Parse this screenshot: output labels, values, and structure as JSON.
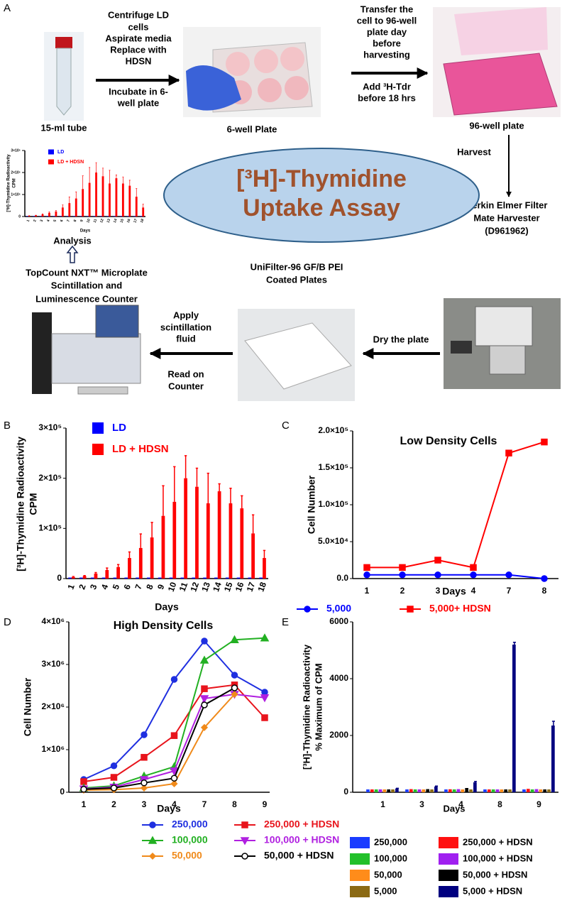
{
  "diagram": {
    "label": "A",
    "tube": "15-ml tube",
    "step1": [
      "Centrifuge LD",
      "cells",
      "Aspirate media",
      "Replace with",
      "HDSN"
    ],
    "step1b": [
      "Incubate in 6-",
      "well plate"
    ],
    "plate6": "6-well Plate",
    "step2": [
      "Transfer the",
      "cell to 96-well",
      "plate day",
      "before",
      "harvesting"
    ],
    "step2b": [
      "Add ³H-Tdr",
      "before 18 hrs"
    ],
    "plate96": "96-well plate",
    "harvest": "Harvest",
    "harvester": [
      "Perkin Elmer Filter",
      "Mate Harvester",
      "(D961962)"
    ],
    "title": [
      "[³H]-Thymidine",
      "Uptake Assay"
    ],
    "analysis": "Analysis",
    "counter": [
      "TopCount NXT™ Microplate",
      "Scintillation and",
      "Luminescence Counter"
    ],
    "filter": [
      "UniFilter-96 GF/B PEI",
      "Coated Plates"
    ],
    "apply": [
      "Apply",
      "scintillation",
      "fluid"
    ],
    "read": [
      "Read on",
      "Counter"
    ],
    "dry": "Dry the plate"
  },
  "chart_data": [
    {
      "type": "bar",
      "panel": "B",
      "ylabel": [
        "[³H]-Thymidine Radioactivity",
        "CPM"
      ],
      "xlabel": "Days",
      "categories": [
        "1",
        "2",
        "3",
        "4",
        "5",
        "6",
        "7",
        "8",
        "9",
        "10",
        "11",
        "12",
        "13",
        "14",
        "15",
        "16",
        "17",
        "18"
      ],
      "series": [
        {
          "name": "LD",
          "color": "#0000ff",
          "values": [
            2000,
            2000,
            2000,
            2000,
            2000,
            2000,
            2000,
            2000,
            2000,
            2000,
            2000,
            2000,
            2000,
            2000,
            2000,
            2000,
            2000,
            2000
          ]
        },
        {
          "name": "LD + HDSN",
          "color": "#ff0000",
          "values": [
            3000,
            5000,
            10000,
            17000,
            23000,
            41000,
            61000,
            82000,
            125000,
            153000,
            200000,
            183000,
            150000,
            174000,
            150000,
            140000,
            90000,
            41000
          ],
          "errors": [
            1000,
            1000,
            2000,
            4000,
            5000,
            12000,
            28000,
            30000,
            60000,
            70000,
            45000,
            37000,
            60000,
            15000,
            30000,
            25000,
            37000,
            15000
          ]
        }
      ],
      "ylim": [
        0,
        300000
      ],
      "yticks": [
        0,
        {
          "value": 100000,
          "label": "1×10⁵"
        },
        {
          "value": 200000,
          "label": "2×10⁵"
        },
        {
          "value": 300000,
          "label": "3×10⁵"
        }
      ],
      "legend": "upper left",
      "legend_text_colored": true,
      "grid": false
    },
    {
      "type": "line",
      "panel": "C",
      "title": "Low Density Cells",
      "ylabel": [
        "Cell Number"
      ],
      "xlabel": "Days",
      "categories": [
        "1",
        "2",
        "3",
        "4",
        "7",
        "8"
      ],
      "series": [
        {
          "name": "5,000",
          "color": "#0000ff",
          "marker": "circle",
          "values": [
            5000,
            5000,
            5000,
            5000,
            5000,
            0
          ]
        },
        {
          "name": "5,000+ HDSN",
          "color": "#ff0000",
          "marker": "square",
          "values": [
            15000,
            15000,
            25000,
            15000,
            170000,
            185000
          ]
        }
      ],
      "ylim": [
        0,
        200000
      ],
      "yticks": [
        {
          "value": 0,
          "label": "0.0"
        },
        {
          "value": 50000,
          "label": "5.0×10⁴"
        },
        {
          "value": 100000,
          "label": "1.0×10⁵"
        },
        {
          "value": 150000,
          "label": "1.5×10⁵"
        },
        {
          "value": 200000,
          "label": "2.0×10⁵"
        }
      ],
      "legend": "bottom",
      "legend_text_colored": true,
      "grid": false
    },
    {
      "type": "line",
      "panel": "D",
      "title": "High Density Cells",
      "ylabel": [
        "Cell Number"
      ],
      "xlabel": "Days",
      "categories": [
        "1",
        "2",
        "3",
        "4",
        "7",
        "8",
        "9"
      ],
      "series": [
        {
          "name": "250,000",
          "color": "#1f2fe0",
          "marker": "circle",
          "values": [
            300000,
            620000,
            1350000,
            2650000,
            3550000,
            2750000,
            2350000
          ]
        },
        {
          "name": "250,000 + HDSN",
          "color": "#e8141c",
          "marker": "square",
          "values": [
            250000,
            350000,
            820000,
            1330000,
            2430000,
            2520000,
            1750000
          ]
        },
        {
          "name": "100,000",
          "color": "#22b022",
          "marker": "triangle",
          "values": [
            100000,
            150000,
            380000,
            600000,
            3100000,
            3580000,
            3620000
          ]
        },
        {
          "name": "100,000 + HDSN",
          "color": "#b020e0",
          "marker": "triangle-down",
          "values": [
            80000,
            120000,
            300000,
            500000,
            2200000,
            2300000,
            2220000
          ]
        },
        {
          "name": "50,000",
          "color": "#f08a1a",
          "marker": "diamond",
          "values": [
            50000,
            60000,
            100000,
            200000,
            1520000,
            2300000,
            null
          ]
        },
        {
          "name": "50,000 + HDSN",
          "color": "#000000",
          "marker": "open-circle",
          "values": [
            70000,
            100000,
            220000,
            330000,
            2050000,
            2450000,
            null
          ]
        }
      ],
      "ylim": [
        0,
        4000000
      ],
      "yticks": [
        0,
        {
          "value": 1000000,
          "label": "1×10⁶"
        },
        {
          "value": 2000000,
          "label": "2×10⁶"
        },
        {
          "value": 3000000,
          "label": "3×10⁶"
        },
        {
          "value": 4000000,
          "label": "4×10⁶"
        }
      ],
      "legend": "bottom",
      "legend_text_colored": true,
      "grid": false
    },
    {
      "type": "bar",
      "panel": "E",
      "ylabel": [
        "[³H]-Thymidine Radioactivity",
        "% Maximum of CPM"
      ],
      "xlabel": "Days",
      "categories": [
        "1",
        "3",
        "4",
        "8",
        "9"
      ],
      "series": [
        {
          "name": "250,000",
          "color": "#1a3cff",
          "values": [
            100,
            100,
            100,
            100,
            100
          ]
        },
        {
          "name": "250,000 + HDSN",
          "color": "#ff1010",
          "values": [
            100,
            110,
            105,
            100,
            120
          ]
        },
        {
          "name": "100,000",
          "color": "#22c02a",
          "values": [
            100,
            100,
            100,
            100,
            100
          ]
        },
        {
          "name": "100,000 + HDSN",
          "color": "#a020f0",
          "values": [
            100,
            100,
            110,
            100,
            110
          ]
        },
        {
          "name": "50,000",
          "color": "#ff8c1a",
          "values": [
            100,
            100,
            100,
            100,
            100
          ]
        },
        {
          "name": "50,000 + HDSN",
          "color": "#000000",
          "values": [
            100,
            110,
            150,
            100,
            100
          ]
        },
        {
          "name": "5,000",
          "color": "#8b6a14",
          "values": [
            100,
            100,
            100,
            100,
            100
          ]
        },
        {
          "name": "5,000 + HDSN",
          "color": "#000080",
          "values": [
            130,
            200,
            350,
            5200,
            2350
          ],
          "errors": [
            10,
            20,
            30,
            80,
            150
          ]
        }
      ],
      "ylim": [
        0,
        6000
      ],
      "yticks": [
        0,
        2000,
        4000,
        6000
      ],
      "legend": "bottom",
      "legend_text_colored": false,
      "grid": false
    }
  ]
}
